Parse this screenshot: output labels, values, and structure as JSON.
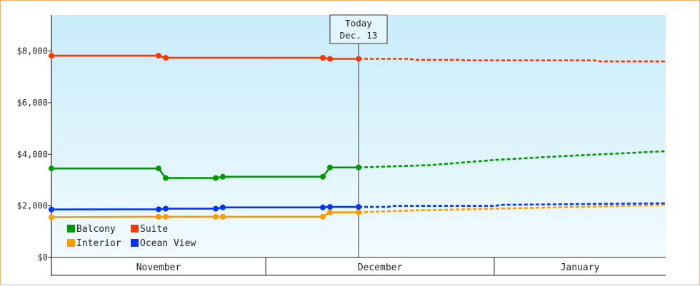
{
  "chart_data": {
    "type": "line",
    "title": "",
    "xlabel": "",
    "ylabel": "",
    "ylim": [
      0,
      9400
    ],
    "y_ticks": [
      0,
      2000,
      4000,
      6000,
      8000
    ],
    "y_tick_labels": [
      "$0",
      "$2,000",
      "$4,000",
      "$6,000",
      "$8,000"
    ],
    "x_domain": [
      "2023-10-31",
      "2024-01-25"
    ],
    "months": [
      {
        "label": "November",
        "start": "2023-10-31",
        "end": "2023-11-30"
      },
      {
        "label": "December",
        "start": "2023-11-30",
        "end": "2024-01-01"
      },
      {
        "label": "January",
        "start": "2024-01-01",
        "end": "2024-01-25"
      }
    ],
    "today": {
      "date": "2023-12-13",
      "line1": "Today",
      "line2": "Dec. 13"
    },
    "grid": false,
    "legend_position": "bottom-left",
    "series": [
      {
        "name": "Balcony",
        "color": "#009900",
        "actual": [
          [
            "2023-10-31",
            3450
          ],
          [
            "2023-11-15",
            3450
          ],
          [
            "2023-11-16",
            3080
          ],
          [
            "2023-11-23",
            3080
          ],
          [
            "2023-11-24",
            3130
          ],
          [
            "2023-12-08",
            3130
          ],
          [
            "2023-12-09",
            3490
          ],
          [
            "2023-12-13",
            3490
          ]
        ],
        "forecast": [
          [
            "2023-12-13",
            3490
          ],
          [
            "2023-12-23",
            3580
          ],
          [
            "2024-01-01",
            3780
          ],
          [
            "2024-01-10",
            3920
          ],
          [
            "2024-01-25",
            4120
          ]
        ]
      },
      {
        "name": "Suite",
        "color": "#ff3300",
        "actual": [
          [
            "2023-10-31",
            7820
          ],
          [
            "2023-11-15",
            7820
          ],
          [
            "2023-11-16",
            7740
          ],
          [
            "2023-12-08",
            7740
          ],
          [
            "2023-12-09",
            7700
          ],
          [
            "2023-12-13",
            7700
          ]
        ],
        "forecast": [
          [
            "2023-12-13",
            7700
          ],
          [
            "2023-12-20",
            7700
          ],
          [
            "2023-12-21",
            7660
          ],
          [
            "2023-12-27",
            7660
          ],
          [
            "2023-12-28",
            7640
          ],
          [
            "2024-01-15",
            7640
          ],
          [
            "2024-01-16",
            7600
          ],
          [
            "2024-01-25",
            7600
          ]
        ]
      },
      {
        "name": "Interior",
        "color": "#ff9900",
        "actual": [
          [
            "2023-10-31",
            1560
          ],
          [
            "2023-11-15",
            1580
          ],
          [
            "2023-11-16",
            1580
          ],
          [
            "2023-11-23",
            1580
          ],
          [
            "2023-11-24",
            1580
          ],
          [
            "2023-12-08",
            1580
          ],
          [
            "2023-12-09",
            1750
          ],
          [
            "2023-12-13",
            1750
          ]
        ],
        "forecast": [
          [
            "2023-12-13",
            1750
          ],
          [
            "2023-12-20",
            1820
          ],
          [
            "2023-12-27",
            1860
          ],
          [
            "2024-01-04",
            1910
          ],
          [
            "2024-01-13",
            1960
          ],
          [
            "2024-01-25",
            2040
          ]
        ]
      },
      {
        "name": "Ocean View",
        "color": "#0033ff",
        "actual": [
          [
            "2023-10-31",
            1860
          ],
          [
            "2023-11-15",
            1870
          ],
          [
            "2023-11-16",
            1890
          ],
          [
            "2023-11-23",
            1890
          ],
          [
            "2023-11-24",
            1940
          ],
          [
            "2023-12-08",
            1940
          ],
          [
            "2023-12-09",
            1960
          ],
          [
            "2023-12-13",
            1960
          ]
        ],
        "forecast": [
          [
            "2023-12-13",
            1960
          ],
          [
            "2023-12-17",
            1960
          ],
          [
            "2023-12-18",
            2000
          ],
          [
            "2024-01-01",
            2000
          ],
          [
            "2024-01-02",
            2040
          ],
          [
            "2024-01-25",
            2100
          ]
        ]
      }
    ],
    "markers": {
      "Balcony": [
        "2023-10-31",
        "2023-11-15",
        "2023-11-16",
        "2023-11-23",
        "2023-11-24",
        "2023-12-08",
        "2023-12-09",
        "2023-12-13"
      ],
      "Suite": [
        "2023-10-31",
        "2023-11-15",
        "2023-11-16",
        "2023-12-08",
        "2023-12-09",
        "2023-12-13"
      ],
      "Interior": [
        "2023-10-31",
        "2023-11-15",
        "2023-11-16",
        "2023-11-23",
        "2023-11-24",
        "2023-12-08",
        "2023-12-09",
        "2023-12-13"
      ],
      "Ocean View": [
        "2023-10-31",
        "2023-11-15",
        "2023-11-16",
        "2023-11-23",
        "2023-11-24",
        "2023-12-08",
        "2023-12-09",
        "2023-12-13"
      ]
    }
  },
  "colors": {
    "frame_border": "#e8b46e",
    "plot_bg_top": "#c8ecfa",
    "plot_bg_bottom": "#f2fbff",
    "axis": "#222222"
  }
}
